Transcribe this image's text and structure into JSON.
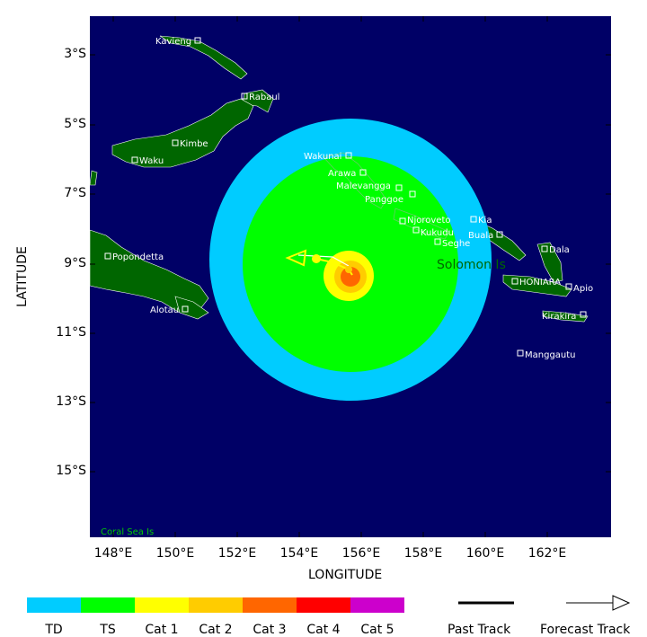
{
  "axes": {
    "xlabel": "LONGITUDE",
    "ylabel": "LATITUDE",
    "xticks": [
      "148°E",
      "150°E",
      "152°E",
      "154°E",
      "156°E",
      "158°E",
      "160°E",
      "162°E"
    ],
    "yticks": [
      "3°S",
      "5°S",
      "7°S",
      "9°S",
      "11°S",
      "13°S",
      "15°S"
    ]
  },
  "places": [
    {
      "name": "Kavieng"
    },
    {
      "name": "Rabaul"
    },
    {
      "name": "Kimbe"
    },
    {
      "name": "Waku"
    },
    {
      "name": "Popondetta"
    },
    {
      "name": "Alotau"
    },
    {
      "name": "Wakunai"
    },
    {
      "name": "Arawa"
    },
    {
      "name": "Malevangga"
    },
    {
      "name": "Panggoe"
    },
    {
      "name": "Njoroveto"
    },
    {
      "name": "Kukudu"
    },
    {
      "name": "Seghe"
    },
    {
      "name": "Kia"
    },
    {
      "name": "Buala"
    },
    {
      "name": "Dala"
    },
    {
      "name": "HONIARA"
    },
    {
      "name": "Apio"
    },
    {
      "name": "Kirakira"
    },
    {
      "name": "Manggautu"
    }
  ],
  "region_labels": {
    "solomon": "Solomon Is",
    "coral_sea": "Coral Sea Is"
  },
  "legend": {
    "intensity": [
      {
        "label": "TD",
        "color": "#00ccff"
      },
      {
        "label": "TS",
        "color": "#00ff00"
      },
      {
        "label": "Cat 1",
        "color": "#ffff00"
      },
      {
        "label": "Cat 2",
        "color": "#ffcc00"
      },
      {
        "label": "Cat 3",
        "color": "#ff6600"
      },
      {
        "label": "Cat 4",
        "color": "#ff0000"
      },
      {
        "label": "Cat 5",
        "color": "#cc00cc"
      }
    ],
    "past_track": "Past Track",
    "forecast_track": "Forecast Track"
  },
  "colors": {
    "ocean": "#000066",
    "land": "#006600",
    "td": "#00ccff",
    "ts": "#00ff00"
  }
}
